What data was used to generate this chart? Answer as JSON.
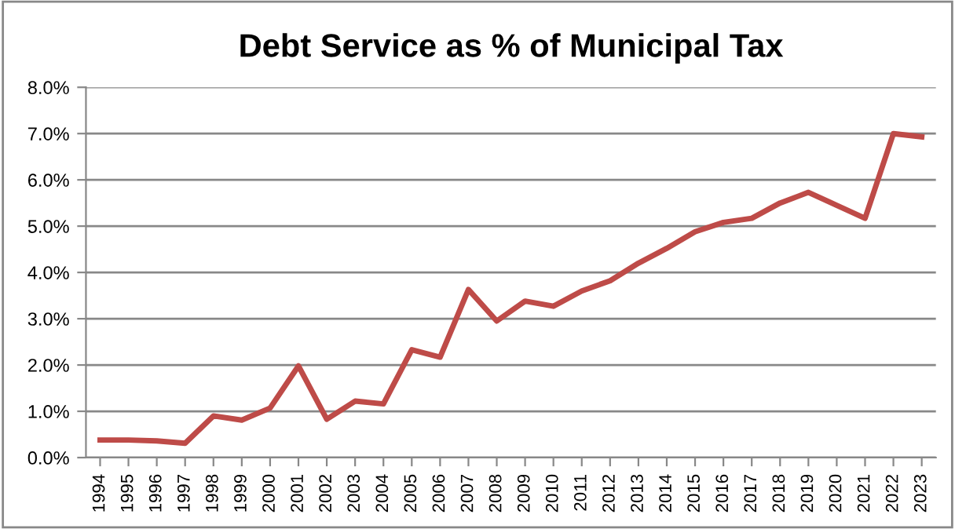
{
  "chart_data": {
    "type": "line",
    "title": "Debt Service as % of Municipal Tax",
    "categories": [
      "1994",
      "1995",
      "1996",
      "1997",
      "1998",
      "1999",
      "2000",
      "2001",
      "2002",
      "2003",
      "2004",
      "2005",
      "2006",
      "2007",
      "2008",
      "2009",
      "2010",
      "2011",
      "2012",
      "2013",
      "2014",
      "2015",
      "2016",
      "2017",
      "2018",
      "2019",
      "2020",
      "2021",
      "2022",
      "2023"
    ],
    "series": [
      {
        "color": "#be4b48",
        "values": [
          0.38,
          0.38,
          0.36,
          0.31,
          0.9,
          0.81,
          1.07,
          1.98,
          0.83,
          1.22,
          1.16,
          2.33,
          2.17,
          3.63,
          2.95,
          3.38,
          3.27,
          3.6,
          3.82,
          4.2,
          4.52,
          4.88,
          5.08,
          5.17,
          5.5,
          5.73,
          5.45,
          5.17,
          7.0,
          6.93
        ]
      }
    ],
    "ylim": [
      0,
      8
    ],
    "yticks": [
      {
        "value": 0,
        "label": "0.0%"
      },
      {
        "value": 1,
        "label": "1.0%"
      },
      {
        "value": 2,
        "label": "2.0%"
      },
      {
        "value": 3,
        "label": "3.0%"
      },
      {
        "value": 4,
        "label": "4.0%"
      },
      {
        "value": 5,
        "label": "5.0%"
      },
      {
        "value": 6,
        "label": "6.0%"
      },
      {
        "value": 7,
        "label": "7.0%"
      },
      {
        "value": 8,
        "label": "8.0%"
      }
    ],
    "grid": "y",
    "legend": false,
    "marker": "none",
    "line_style": "solid"
  }
}
